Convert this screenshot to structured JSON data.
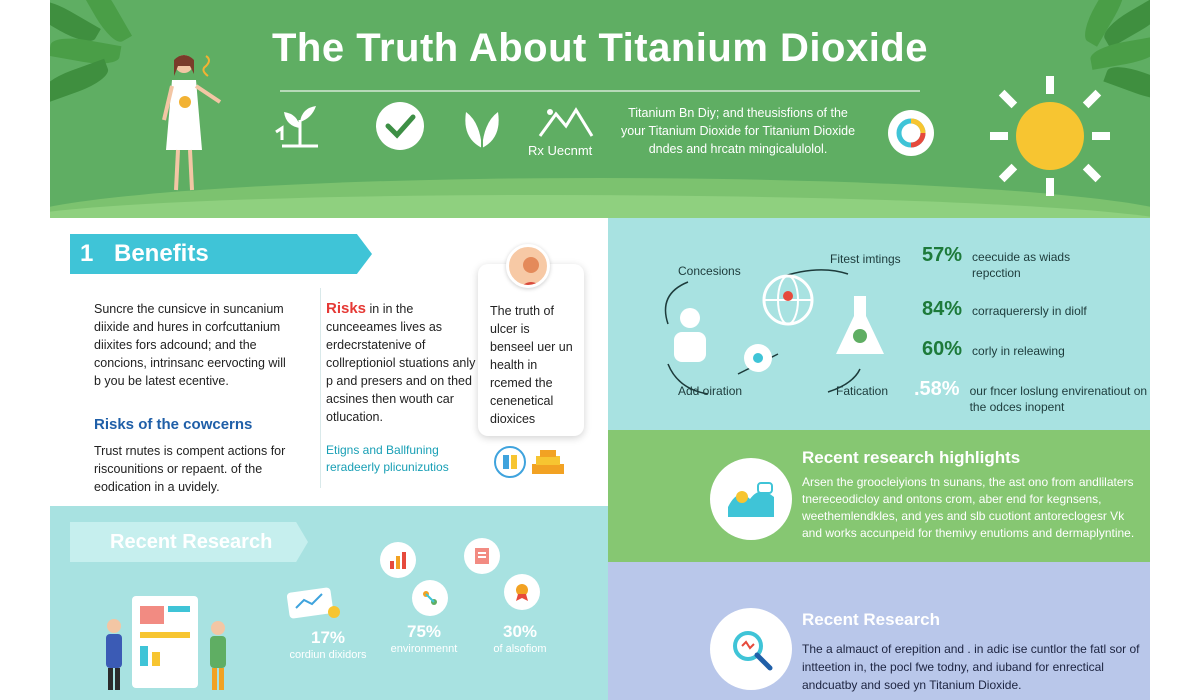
{
  "header": {
    "title": "The Truth About Titanium Dioxide",
    "icon_label": "Rx Uecnmt",
    "description": "Titanium Bn Diy; and theusisfions of the your Titanium Dioxide for Titanium Dioxide dndes and hrcatn mingicalulolol.",
    "icons": [
      "plant-hand-icon",
      "check-circle-icon",
      "leaf-icon",
      "mountain-icon",
      "ring-chart-icon",
      "sun-icon"
    ],
    "colors": {
      "header_bg": "#5fae63",
      "accent_teal": "#3fc4d7",
      "sun": "#f7c531"
    }
  },
  "benefits": {
    "number": "1",
    "title": "Benefits",
    "text_1": "Suncre the cunsicve in suncanium diixide and hures in corfcuttanium diixites fors adcound; and the concions, intrinsanc eervocting will b you be latest ecentive.",
    "risks_title": "Risks",
    "risks_text": "in in the cunceeames lives as erdecrstatenive of collreptioniol stuations anly p and presers and on thed acsines then wouth car otlucation.",
    "card_text": "The truth of ulcer is benseel uer un health in rcemed the cenenetical dioxices",
    "sub_heading": "Risks of the cowcerns",
    "sub_text": "Trust rnutes is compent actions for riscounitions or repaent. of the eodication in a uvidely.",
    "teal_text": "Etigns and Ballfuning reradeerly plicunizutios"
  },
  "stats": {
    "label_concessions": "Concesions",
    "label_fitness": "Fitest imtings",
    "label_add": "Add oiration",
    "label_fatication": "Fatication",
    "items": [
      {
        "pct": "57%",
        "desc": "ceecuide as wiads repcction"
      },
      {
        "pct": "84%",
        "desc": "corraquerersly in diolf"
      },
      {
        "pct": "60%",
        "desc": "corly in releawing"
      },
      {
        "pct": ".58%",
        "desc": "our fncer loslung envirenatiout on the odces inopent"
      }
    ]
  },
  "highlights": {
    "title": "Recent research highlights",
    "text": "Arsen the groocleiyions tn sunans, the ast ono from andlilaters tnereceodicloy and ontons crom, aber end for kegnsens, weethemlendkles, and yes and slb cuotiont antoreclogesr Vk and works accunpeid for themivy enutioms and dermaplyntine."
  },
  "research_right": {
    "title": "Recent Research",
    "text": "The a almauct of erepition and . in adic ise cuntlor the fatl sor of intteetion in, the pocl fwe todny, and iuband for enrectical andcuatby and soed yn Titanium Dioxide."
  },
  "research_left": {
    "title": "Recent Research",
    "stats": [
      {
        "pct": "17%",
        "label": "cordiun dixidors"
      },
      {
        "pct": "75%",
        "label": "environmennt"
      },
      {
        "pct": "30%",
        "label": "of alsofiom"
      }
    ]
  }
}
